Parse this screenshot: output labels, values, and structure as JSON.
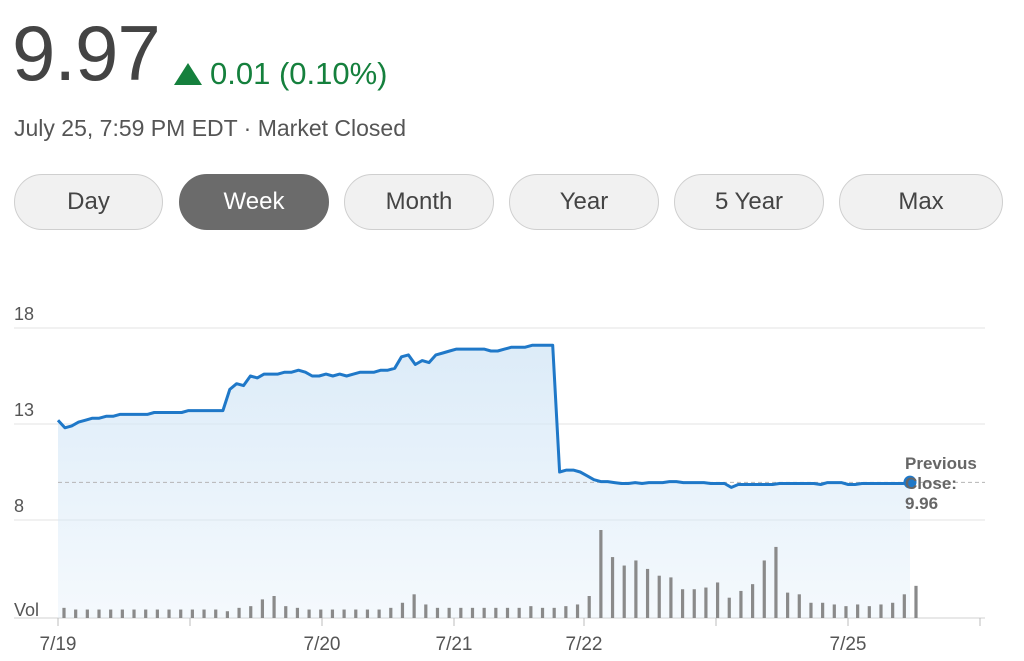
{
  "header": {
    "price": "9.97",
    "change": "0.01 (0.10%)",
    "change_direction": "up",
    "timestamp": "July 25, 7:59 PM EDT · Market Closed",
    "up_color": "#15803d"
  },
  "range_tabs": {
    "items": [
      "Day",
      "Week",
      "Month",
      "Year",
      "5 Year",
      "Max"
    ],
    "active": "Week"
  },
  "chart_data": {
    "type": "line",
    "y_ticks": [
      "18",
      "13",
      "8"
    ],
    "ylim": [
      3,
      20
    ],
    "volume_label": "Vol",
    "x_ticks": [
      "7/19",
      "7/20",
      "7/21",
      "7/22",
      "7/25"
    ],
    "previous_close": {
      "label_line1": "Previous",
      "label_line2": "Close:",
      "value": "9.96",
      "y": 9.96
    },
    "line_color": "#1f78c8",
    "fill_color": "#d6e8f7",
    "grid": true,
    "series": [
      {
        "y": [
          13.2,
          12.8,
          12.9,
          13.1,
          13.2,
          13.3,
          13.3,
          13.4,
          13.4,
          13.5,
          13.5,
          13.5,
          13.5,
          13.5,
          13.6,
          13.6,
          13.6,
          13.6,
          13.6,
          13.7,
          13.7,
          13.7,
          13.7,
          13.7,
          13.7,
          14.8,
          15.1,
          15.0,
          15.5,
          15.4,
          15.6,
          15.6,
          15.6,
          15.7,
          15.7,
          15.8,
          15.7,
          15.5,
          15.5,
          15.6,
          15.5,
          15.6,
          15.5,
          15.6,
          15.7,
          15.7,
          15.7,
          15.8,
          15.8,
          15.9,
          16.5,
          16.6,
          16.1,
          16.3,
          16.2,
          16.6,
          16.7,
          16.8,
          16.9,
          16.9,
          16.9,
          16.9,
          16.9,
          16.8,
          16.8,
          16.9,
          17.0,
          17.0,
          17.0,
          17.1,
          17.1,
          17.1,
          17.1,
          10.5,
          10.6,
          10.6,
          10.5,
          10.3,
          10.1,
          10.0,
          10.0,
          9.95,
          9.9,
          9.9,
          9.95,
          9.9,
          9.95,
          9.95,
          9.95,
          10.0,
          10.0,
          9.95,
          9.95,
          9.95,
          9.95,
          9.9,
          9.9,
          9.9,
          9.7,
          9.85,
          9.85,
          9.85,
          9.85,
          9.85,
          9.85,
          9.9,
          9.9,
          9.9,
          9.9,
          9.9,
          9.9,
          9.85,
          9.95,
          9.95,
          9.95,
          9.85,
          9.85,
          9.9,
          9.9,
          9.9,
          9.9,
          9.9,
          9.9,
          9.9,
          9.97
        ]
      }
    ],
    "volume": [
      6,
      5,
      5,
      5,
      5,
      5,
      5,
      5,
      5,
      5,
      5,
      5,
      5,
      5,
      4,
      6,
      7,
      11,
      13,
      7,
      6,
      5,
      5,
      5,
      5,
      5,
      5,
      5,
      6,
      9,
      14,
      8,
      6,
      6,
      6,
      6,
      6,
      6,
      6,
      6,
      7,
      6,
      6,
      7,
      8,
      13,
      52,
      36,
      31,
      34,
      29,
      25,
      24,
      17,
      17,
      18,
      21,
      12,
      16,
      20,
      34,
      42,
      15,
      14,
      9,
      9,
      8,
      7,
      8,
      7,
      8,
      9,
      14,
      19
    ]
  }
}
